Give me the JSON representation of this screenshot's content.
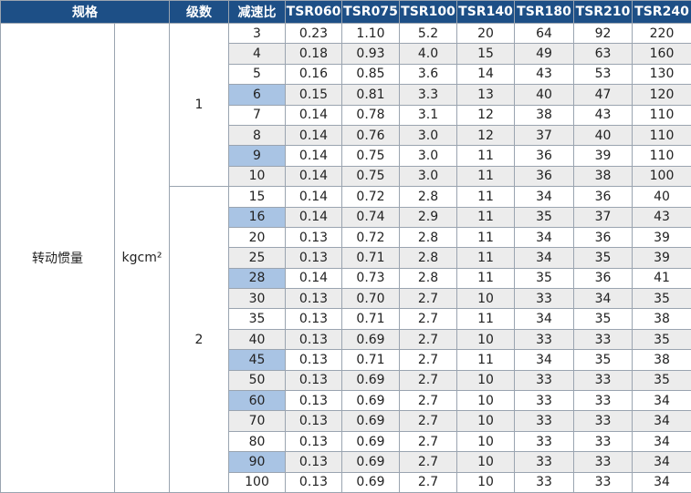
{
  "table": {
    "header": [
      "规格",
      "级数",
      "减速比",
      "TSR060",
      "TSR075",
      "TSR100",
      "TSR140",
      "TSR180",
      "TSR210",
      "TSR240"
    ],
    "spec": "转动惯量",
    "unit": "kgcm²",
    "groups": [
      {
        "stage": "1",
        "highlight": [
          3,
          6
        ],
        "rows": [
          [
            "3",
            "0.23",
            "1.10",
            "5.2",
            "20",
            "64",
            "92",
            "220"
          ],
          [
            "4",
            "0.18",
            "0.93",
            "4.0",
            "15",
            "49",
            "63",
            "160"
          ],
          [
            "5",
            "0.16",
            "0.85",
            "3.6",
            "14",
            "43",
            "53",
            "130"
          ],
          [
            "6",
            "0.15",
            "0.81",
            "3.3",
            "13",
            "40",
            "47",
            "120"
          ],
          [
            "7",
            "0.14",
            "0.78",
            "3.1",
            "12",
            "38",
            "43",
            "110"
          ],
          [
            "8",
            "0.14",
            "0.76",
            "3.0",
            "12",
            "37",
            "40",
            "110"
          ],
          [
            "9",
            "0.14",
            "0.75",
            "3.0",
            "11",
            "36",
            "39",
            "110"
          ],
          [
            "10",
            "0.14",
            "0.75",
            "3.0",
            "11",
            "36",
            "38",
            "100"
          ]
        ]
      },
      {
        "stage": "2",
        "highlight": [
          1,
          4,
          8,
          10,
          13
        ],
        "rows": [
          [
            "15",
            "0.14",
            "0.72",
            "2.8",
            "11",
            "34",
            "36",
            "40"
          ],
          [
            "16",
            "0.14",
            "0.74",
            "2.9",
            "11",
            "35",
            "37",
            "43"
          ],
          [
            "20",
            "0.13",
            "0.72",
            "2.8",
            "11",
            "34",
            "36",
            "39"
          ],
          [
            "25",
            "0.13",
            "0.71",
            "2.8",
            "11",
            "34",
            "35",
            "39"
          ],
          [
            "28",
            "0.14",
            "0.73",
            "2.8",
            "11",
            "35",
            "36",
            "41"
          ],
          [
            "30",
            "0.13",
            "0.70",
            "2.7",
            "10",
            "33",
            "34",
            "35"
          ],
          [
            "35",
            "0.13",
            "0.71",
            "2.7",
            "11",
            "34",
            "35",
            "38"
          ],
          [
            "40",
            "0.13",
            "0.69",
            "2.7",
            "10",
            "33",
            "33",
            "35"
          ],
          [
            "45",
            "0.13",
            "0.71",
            "2.7",
            "11",
            "34",
            "35",
            "38"
          ],
          [
            "50",
            "0.13",
            "0.69",
            "2.7",
            "10",
            "33",
            "33",
            "35"
          ],
          [
            "60",
            "0.13",
            "0.69",
            "2.7",
            "10",
            "33",
            "33",
            "34"
          ],
          [
            "70",
            "0.13",
            "0.69",
            "2.7",
            "10",
            "33",
            "33",
            "34"
          ],
          [
            "80",
            "0.13",
            "0.69",
            "2.7",
            "10",
            "33",
            "33",
            "34"
          ],
          [
            "90",
            "0.13",
            "0.69",
            "2.7",
            "10",
            "33",
            "33",
            "34"
          ],
          [
            "100",
            "0.13",
            "0.69",
            "2.7",
            "10",
            "33",
            "33",
            "34"
          ]
        ]
      }
    ]
  }
}
